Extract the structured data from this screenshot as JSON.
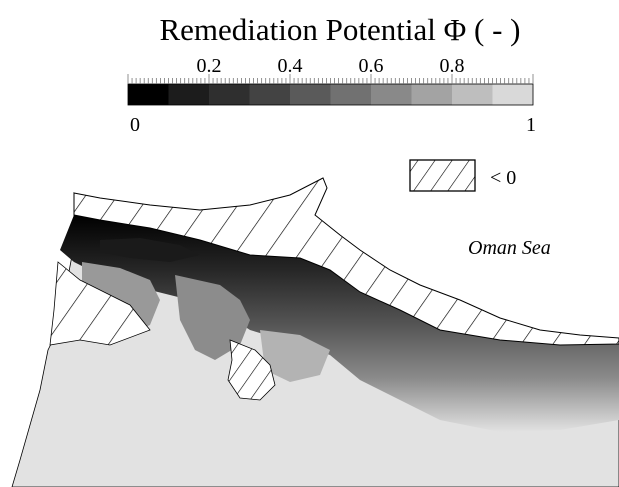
{
  "title": "Remediation Potential Φ ( - )",
  "colorbar": {
    "min_label": "0",
    "max_label": "1",
    "ticks": [
      "0.2",
      "0.4",
      "0.6",
      "0.8"
    ],
    "tick_values": [
      0.2,
      0.4,
      0.6,
      0.8
    ],
    "range": [
      0,
      1
    ],
    "levels": 10,
    "colors": [
      "#000000",
      "#1c1c1c",
      "#2f2f2f",
      "#434343",
      "#5a5a5a",
      "#717171",
      "#898989",
      "#a3a3a3",
      "#bebebe",
      "#d9d9d9"
    ]
  },
  "legend": {
    "hatch_label": "< 0"
  },
  "map": {
    "sea_label": "Oman Sea",
    "land_color": "#e2e2e2"
  }
}
